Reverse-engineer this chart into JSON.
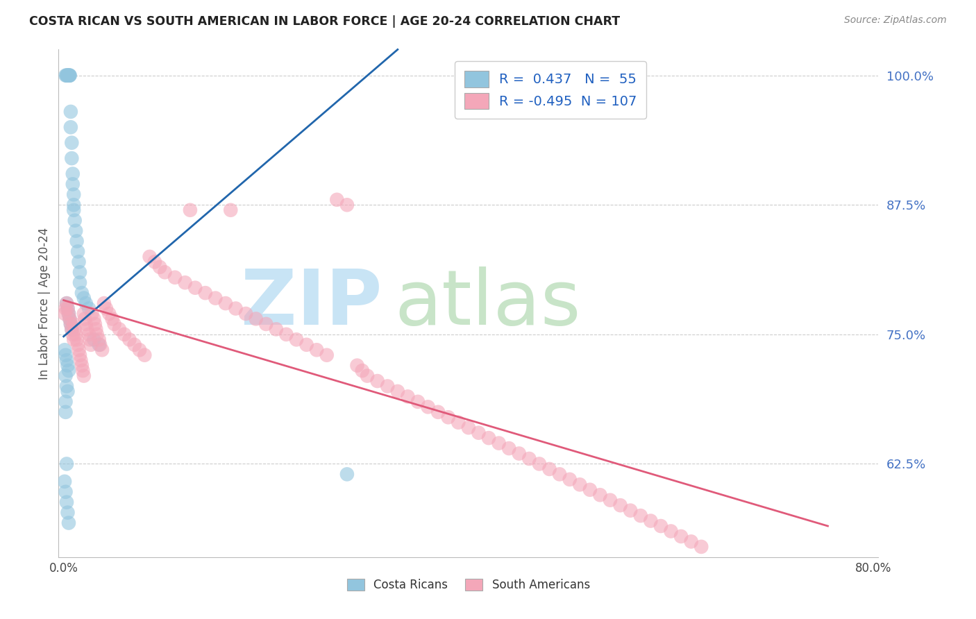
{
  "title": "COSTA RICAN VS SOUTH AMERICAN IN LABOR FORCE | AGE 20-24 CORRELATION CHART",
  "source": "Source: ZipAtlas.com",
  "ylabel": "In Labor Force | Age 20-24",
  "xlim": [
    -0.005,
    0.805
  ],
  "ylim": [
    0.535,
    1.025
  ],
  "yticks": [
    0.625,
    0.75,
    0.875,
    1.0
  ],
  "yticklabels": [
    "62.5%",
    "75.0%",
    "87.5%",
    "100.0%"
  ],
  "xtick_pos": [
    0.0,
    0.8
  ],
  "xticklabels": [
    "0.0%",
    "80.0%"
  ],
  "blue_color": "#92c5de",
  "blue_edge_color": "#92c5de",
  "pink_color": "#f4a7b9",
  "pink_edge_color": "#f4a7b9",
  "blue_line_color": "#2166ac",
  "pink_line_color": "#e05a7a",
  "legend_R_blue": "0.437",
  "legend_N_blue": "55",
  "legend_R_pink": "-0.495",
  "legend_N_pink": "107",
  "grid_color": "#cccccc",
  "ytick_color": "#4472C4",
  "watermark_zip_color": "#c8e4f5",
  "watermark_atlas_color": "#c8e4c8",
  "blue_scatter_x": [
    0.002,
    0.003,
    0.003,
    0.004,
    0.004,
    0.005,
    0.005,
    0.006,
    0.006,
    0.006,
    0.007,
    0.007,
    0.008,
    0.008,
    0.009,
    0.009,
    0.01,
    0.01,
    0.01,
    0.011,
    0.012,
    0.013,
    0.014,
    0.015,
    0.016,
    0.016,
    0.018,
    0.02,
    0.022,
    0.025,
    0.003,
    0.004,
    0.005,
    0.006,
    0.007,
    0.008,
    0.03,
    0.035,
    0.001,
    0.002,
    0.003,
    0.004,
    0.005,
    0.002,
    0.003,
    0.004,
    0.002,
    0.002,
    0.003,
    0.28,
    0.001,
    0.002,
    0.003,
    0.004,
    0.005
  ],
  "blue_scatter_y": [
    1.0,
    1.0,
    1.0,
    1.0,
    1.0,
    1.0,
    1.0,
    1.0,
    1.0,
    1.0,
    0.965,
    0.95,
    0.935,
    0.92,
    0.905,
    0.895,
    0.885,
    0.875,
    0.87,
    0.86,
    0.85,
    0.84,
    0.83,
    0.82,
    0.81,
    0.8,
    0.79,
    0.785,
    0.78,
    0.775,
    0.78,
    0.775,
    0.77,
    0.765,
    0.76,
    0.755,
    0.745,
    0.74,
    0.735,
    0.73,
    0.725,
    0.72,
    0.715,
    0.71,
    0.7,
    0.695,
    0.685,
    0.675,
    0.625,
    0.615,
    0.608,
    0.598,
    0.588,
    0.578,
    0.568
  ],
  "pink_scatter_x": [
    0.001,
    0.002,
    0.003,
    0.004,
    0.005,
    0.006,
    0.007,
    0.008,
    0.009,
    0.01,
    0.01,
    0.011,
    0.012,
    0.013,
    0.014,
    0.015,
    0.016,
    0.017,
    0.018,
    0.019,
    0.02,
    0.02,
    0.021,
    0.022,
    0.023,
    0.025,
    0.026,
    0.027,
    0.028,
    0.03,
    0.031,
    0.032,
    0.033,
    0.035,
    0.036,
    0.038,
    0.04,
    0.042,
    0.045,
    0.048,
    0.05,
    0.055,
    0.06,
    0.065,
    0.07,
    0.075,
    0.08,
    0.085,
    0.09,
    0.095,
    0.1,
    0.11,
    0.12,
    0.125,
    0.13,
    0.14,
    0.15,
    0.16,
    0.165,
    0.17,
    0.18,
    0.19,
    0.2,
    0.21,
    0.22,
    0.23,
    0.24,
    0.25,
    0.26,
    0.27,
    0.28,
    0.29,
    0.295,
    0.3,
    0.31,
    0.32,
    0.33,
    0.34,
    0.35,
    0.36,
    0.37,
    0.38,
    0.39,
    0.4,
    0.41,
    0.42,
    0.43,
    0.44,
    0.45,
    0.46,
    0.47,
    0.48,
    0.49,
    0.5,
    0.51,
    0.52,
    0.53,
    0.54,
    0.55,
    0.56,
    0.57,
    0.58,
    0.59,
    0.6,
    0.61,
    0.62,
    0.63
  ],
  "pink_scatter_y": [
    0.77,
    0.775,
    0.78,
    0.775,
    0.77,
    0.765,
    0.76,
    0.755,
    0.75,
    0.745,
    0.76,
    0.755,
    0.75,
    0.745,
    0.74,
    0.735,
    0.73,
    0.725,
    0.72,
    0.715,
    0.71,
    0.77,
    0.765,
    0.76,
    0.755,
    0.75,
    0.745,
    0.74,
    0.77,
    0.765,
    0.76,
    0.755,
    0.75,
    0.745,
    0.74,
    0.735,
    0.78,
    0.775,
    0.77,
    0.765,
    0.76,
    0.755,
    0.75,
    0.745,
    0.74,
    0.735,
    0.73,
    0.825,
    0.82,
    0.815,
    0.81,
    0.805,
    0.8,
    0.87,
    0.795,
    0.79,
    0.785,
    0.78,
    0.87,
    0.775,
    0.77,
    0.765,
    0.76,
    0.755,
    0.75,
    0.745,
    0.74,
    0.735,
    0.73,
    0.88,
    0.875,
    0.72,
    0.715,
    0.71,
    0.705,
    0.7,
    0.695,
    0.69,
    0.685,
    0.68,
    0.675,
    0.67,
    0.665,
    0.66,
    0.655,
    0.65,
    0.645,
    0.64,
    0.635,
    0.63,
    0.625,
    0.62,
    0.615,
    0.61,
    0.605,
    0.6,
    0.595,
    0.59,
    0.585,
    0.58,
    0.575,
    0.57,
    0.565,
    0.56,
    0.555,
    0.55,
    0.545
  ],
  "blue_line_x": [
    0.0,
    0.33
  ],
  "blue_line_y": [
    0.748,
    1.025
  ],
  "pink_line_x": [
    0.0,
    0.755
  ],
  "pink_line_y": [
    0.783,
    0.565
  ]
}
